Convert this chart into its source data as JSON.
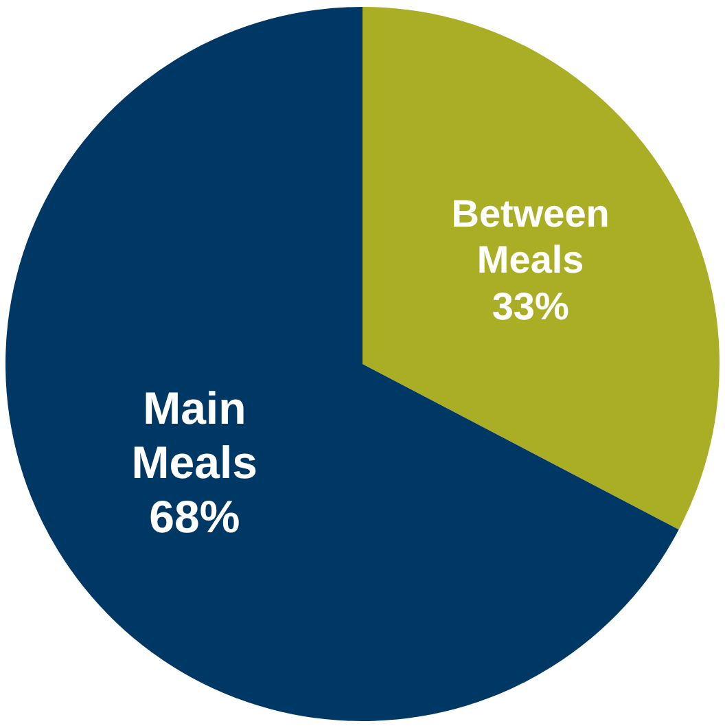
{
  "chart_data": {
    "type": "pie",
    "categories": [
      "Between Meals",
      "Main Meals"
    ],
    "values": [
      33,
      68
    ],
    "colors": [
      "#aaae25",
      "#003865"
    ],
    "value_labels": [
      "33%",
      "68%"
    ],
    "legend": false
  }
}
